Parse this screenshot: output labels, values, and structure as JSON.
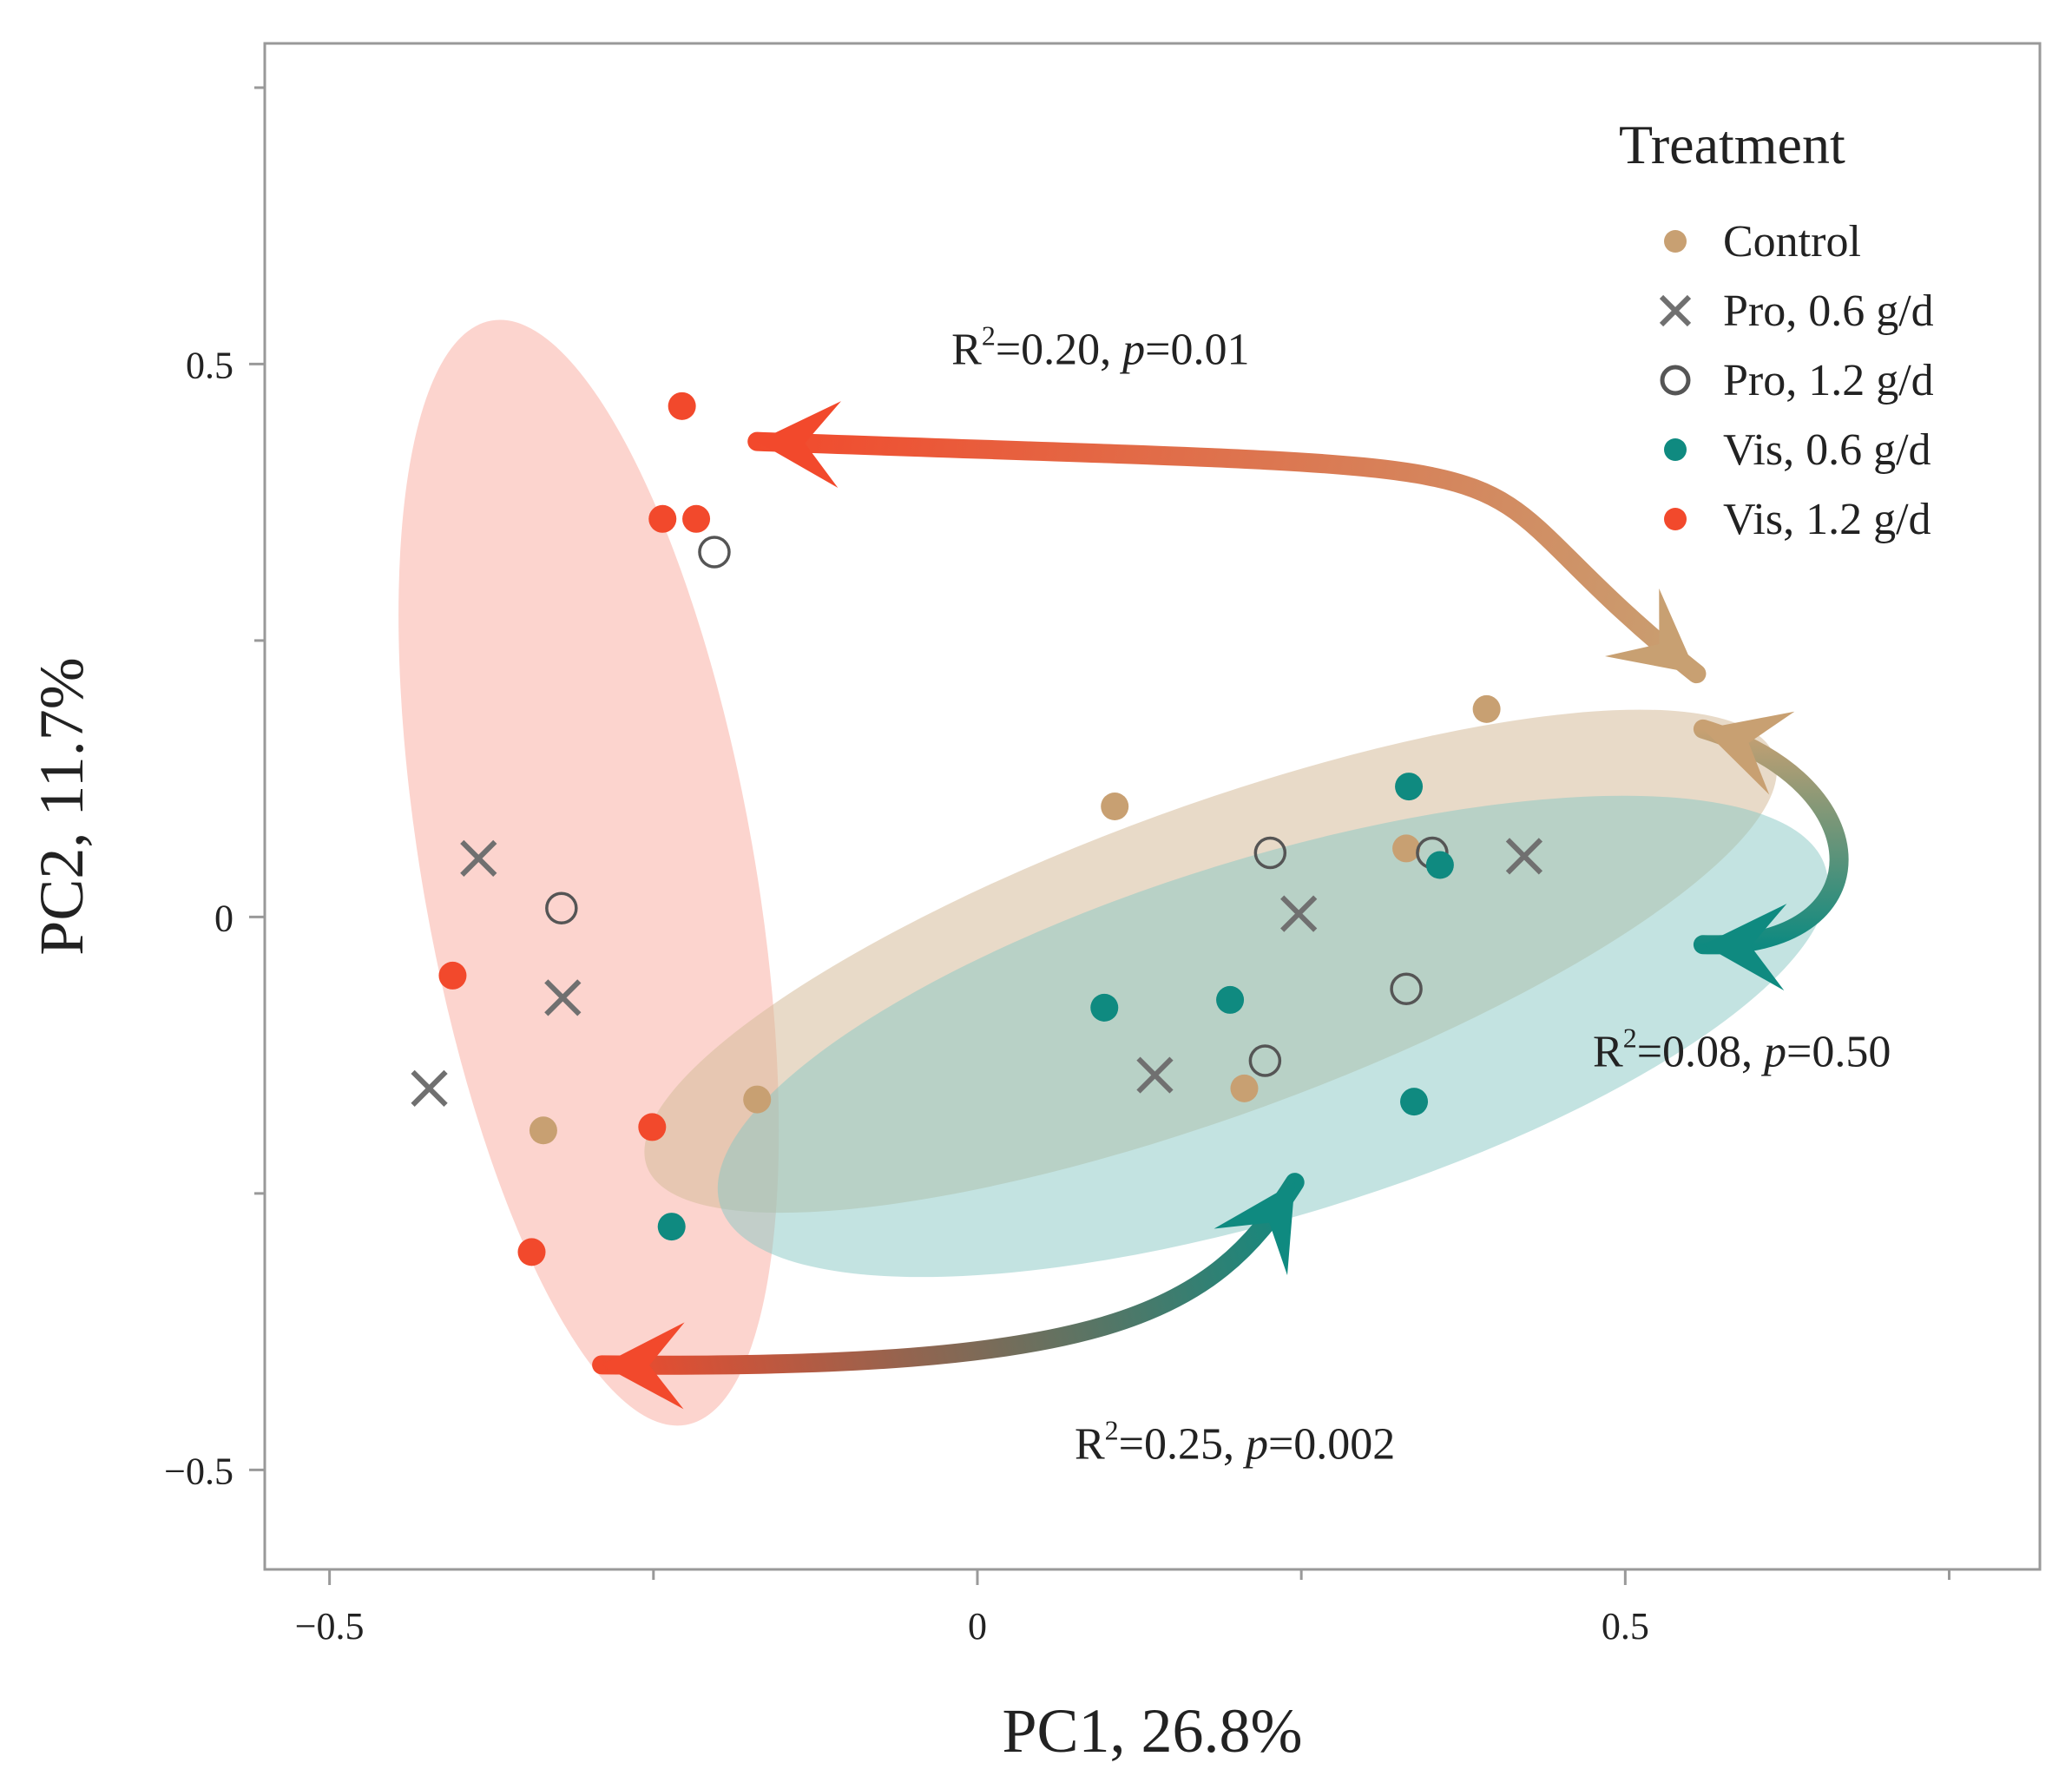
{
  "chart_data": {
    "type": "scatter",
    "title": "",
    "xlabel": "PC1, 26.8%",
    "ylabel": "PC2, 11.7%",
    "xlim": [
      -0.55,
      0.82
    ],
    "ylim": [
      -0.59,
      0.79
    ],
    "x_ticks": [
      {
        "value": -0.5,
        "label": "−0.5"
      },
      {
        "value": 0,
        "label": "0"
      },
      {
        "value": 0.5,
        "label": "0.5"
      }
    ],
    "y_ticks": [
      {
        "value": 0.5,
        "label": "0.5"
      },
      {
        "value": 0,
        "label": "0"
      },
      {
        "value": -0.5,
        "label": "−0.5"
      }
    ],
    "grid": false,
    "legend": {
      "title": "Treatment",
      "position": "top-right",
      "entries": [
        {
          "name": "Control",
          "marker": "dot",
          "color": "#c8a072"
        },
        {
          "name": "Pro, 0.6 g/d",
          "marker": "x",
          "color": "#707070"
        },
        {
          "name": "Pro, 1.2 g/d",
          "marker": "open-circle",
          "color": "#555555"
        },
        {
          "name": "Vis, 0.6 g/d",
          "marker": "dot",
          "color": "#0f8a80"
        },
        {
          "name": "Vis, 1.2 g/d",
          "marker": "dot",
          "color": "#f2492c"
        }
      ]
    },
    "series": [
      {
        "name": "Control",
        "marker": "dot",
        "color": "#c8a072",
        "points": [
          [
            -0.335,
            -0.193
          ],
          [
            -0.17,
            -0.165
          ],
          [
            0.106,
            0.1
          ],
          [
            0.206,
            -0.155
          ],
          [
            0.331,
            0.062
          ],
          [
            0.393,
            0.188
          ]
        ]
      },
      {
        "name": "Pro, 0.6 g/d",
        "marker": "x",
        "color": "#707070",
        "points": [
          [
            -0.385,
            0.053
          ],
          [
            -0.32,
            -0.073
          ],
          [
            -0.423,
            -0.155
          ],
          [
            0.137,
            -0.143
          ],
          [
            0.248,
            0.003
          ],
          [
            0.422,
            0.055
          ]
        ]
      },
      {
        "name": "Pro, 1.2 g/d",
        "marker": "open-circle",
        "color": "#555555",
        "points": [
          [
            -0.203,
            0.33
          ],
          [
            -0.321,
            0.008
          ],
          [
            0.226,
            0.058
          ],
          [
            0.222,
            -0.13
          ],
          [
            0.331,
            -0.065
          ],
          [
            0.351,
            0.058
          ]
        ]
      },
      {
        "name": "Vis, 0.6 g/d",
        "marker": "dot",
        "color": "#0f8a80",
        "points": [
          [
            -0.236,
            -0.28
          ],
          [
            0.098,
            -0.082
          ],
          [
            0.195,
            -0.075
          ],
          [
            0.333,
            0.118
          ],
          [
            0.357,
            0.047
          ],
          [
            0.337,
            -0.167
          ]
        ]
      },
      {
        "name": "Vis, 1.2 g/d",
        "marker": "dot",
        "color": "#f2492c",
        "points": [
          [
            -0.228,
            0.462
          ],
          [
            -0.243,
            0.36
          ],
          [
            -0.217,
            0.36
          ],
          [
            -0.405,
            -0.053
          ],
          [
            -0.251,
            -0.19
          ],
          [
            -0.344,
            -0.303
          ]
        ]
      }
    ],
    "ellipses": [
      {
        "name": "Vis, 1.2 g/d",
        "color": "#f9b0a6",
        "opacity": 0.55,
        "center": [
          -0.3,
          0.04
        ],
        "semi_axes": [
          0.128,
          0.507
        ],
        "rotation_deg": -10
      },
      {
        "name": "Control",
        "color": "#d6bb9b",
        "opacity": 0.55,
        "center": [
          0.18,
          -0.04
        ],
        "semi_axes": [
          0.463,
          0.14
        ],
        "rotation_deg": -20
      },
      {
        "name": "Vis, 0.6 g/d",
        "color": "#88c7c3",
        "opacity": 0.5,
        "center": [
          0.228,
          -0.108
        ],
        "semi_axes": [
          0.446,
          0.162
        ],
        "rotation_deg": -17
      }
    ],
    "annotations": [
      {
        "id": "pair-vis12-control",
        "base": "R",
        "sup": "2",
        "mid": "=0.20, ",
        "ital": "p",
        "tail": "=0.01",
        "anchor": [
          -0.02,
          0.5
        ],
        "colors": [
          "#f2492c",
          "#c8a072"
        ],
        "arrow": [
          [
            0.555,
            0.22
          ],
          [
            -0.17,
            0.43
          ]
        ]
      },
      {
        "id": "pair-control-vis06",
        "base": "R",
        "sup": "2",
        "mid": "=0.08, ",
        "ital": "p",
        "tail": "=0.50",
        "anchor": [
          0.475,
          -0.135
        ],
        "colors": [
          "#c8a072",
          "#0f8a80"
        ],
        "arrow": [
          [
            0.56,
            0.17
          ],
          [
            0.56,
            -0.025
          ]
        ]
      },
      {
        "id": "pair-vis12-vis06",
        "base": "R",
        "sup": "2",
        "mid": "=0.25, ",
        "ital": "p",
        "tail": "=0.002",
        "anchor": [
          0.075,
          -0.49
        ],
        "colors": [
          "#f2492c",
          "#0f8a80"
        ],
        "arrow": [
          [
            -0.29,
            -0.405
          ],
          [
            0.245,
            -0.24
          ]
        ]
      }
    ]
  }
}
